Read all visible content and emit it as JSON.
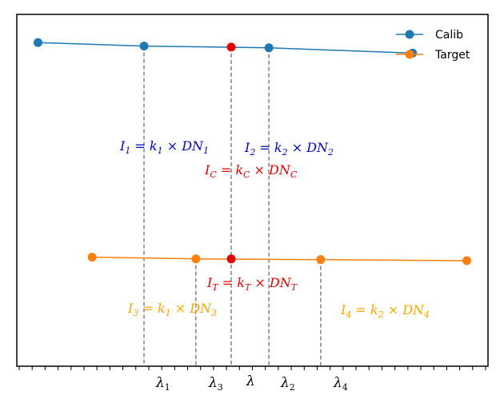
{
  "chart_data": {
    "type": "line",
    "title": "",
    "xlabel": "",
    "ylabel": "",
    "grid": false,
    "legend_position": "top-right",
    "x_ticklabels": [
      {
        "x": 5.4,
        "label": "λ₁"
      },
      {
        "x": 7.6,
        "label": "λ₃"
      },
      {
        "x": 9.1,
        "label": "λ"
      },
      {
        "x": 10.7,
        "label": "λ₂"
      },
      {
        "x": 12.9,
        "label": "λ₄"
      }
    ],
    "xlim": [
      0,
      20
    ],
    "ylim": [
      0,
      10
    ],
    "series": [
      {
        "name": "Calib",
        "color": "#1f77b4",
        "points": [
          [
            0.9,
            9.2
          ],
          [
            5.4,
            9.1
          ],
          [
            10.7,
            9.05
          ],
          [
            16.8,
            8.9
          ]
        ]
      },
      {
        "name": "Target",
        "color": "#ff7f0e",
        "points": [
          [
            3.2,
            3.1
          ],
          [
            7.6,
            3.05
          ],
          [
            12.9,
            3.03
          ],
          [
            19.1,
            3.0
          ]
        ]
      }
    ],
    "highlight_points": [
      {
        "label": "I_C",
        "x": 9.1,
        "y": 9.07,
        "color": "#e00000"
      },
      {
        "label": "I_T",
        "x": 9.1,
        "y": 3.05,
        "color": "#e00000"
      }
    ],
    "vertical_guides": [
      {
        "x": 5.4,
        "y_top": 9.1
      },
      {
        "x": 7.6,
        "y_top": 3.05
      },
      {
        "x": 9.1,
        "y_top": 9.07
      },
      {
        "x": 10.7,
        "y_top": 9.05
      },
      {
        "x": 12.9,
        "y_top": 3.03
      }
    ],
    "annotations": [
      {
        "name": "i1",
        "text": "I₁ = k₁ × DN₁",
        "color": "#0000cc",
        "x": 5.4,
        "y": 9.1
      },
      {
        "name": "i2",
        "text": "I₂ = k₂ × DN₂",
        "color": "#0000cc",
        "x": 10.7,
        "y": 9.05
      },
      {
        "name": "ic",
        "text": "I_C = k_C × DN_C",
        "color": "#e00000",
        "x": 9.1,
        "y": 9.07
      },
      {
        "name": "it",
        "text": "I_T = k_T × DN_T",
        "color": "#e00000",
        "x": 9.1,
        "y": 3.05
      },
      {
        "name": "i3",
        "text": "I₃ = k₁ × DN₃",
        "color": "#ffa500",
        "x": 7.6,
        "y": 3.05
      },
      {
        "name": "i4",
        "text": "I₄ = k₂ × DN₄",
        "color": "#ffa500",
        "x": 12.9,
        "y": 3.03
      }
    ]
  }
}
